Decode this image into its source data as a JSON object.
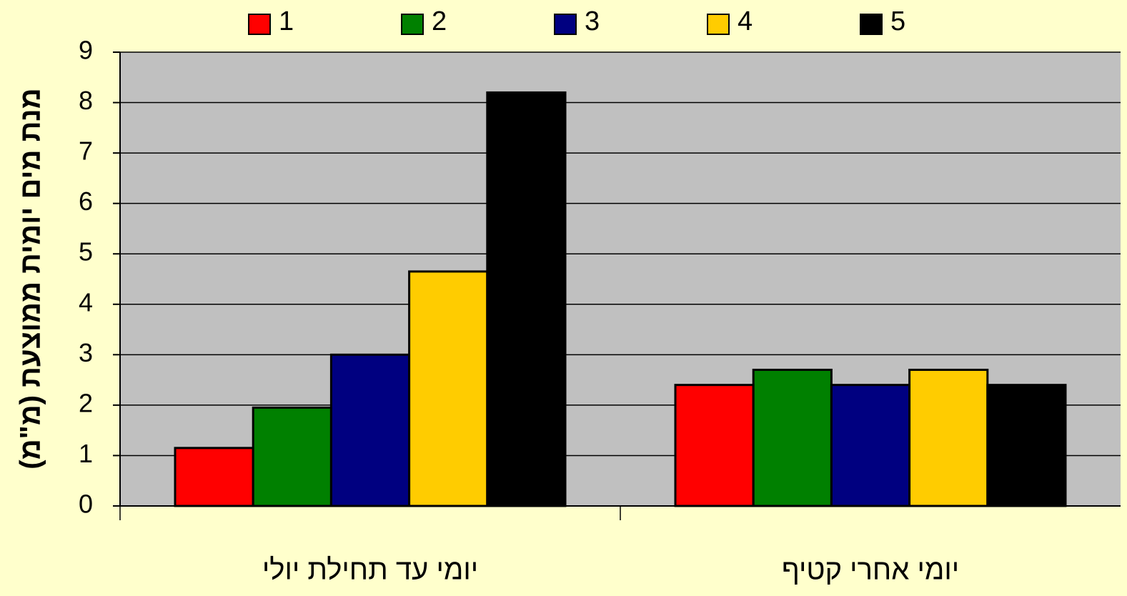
{
  "chart_data": {
    "type": "bar",
    "y_label": "מנת מים יומית ממוצעת (מ\"מ)",
    "categories": [
      "יומי עד תחילת יולי",
      "יומי אחרי קטיף"
    ],
    "series": [
      {
        "name": "1",
        "color": "#ff0000",
        "values": [
          1.15,
          2.4
        ]
      },
      {
        "name": "2",
        "color": "#008000",
        "values": [
          1.95,
          2.7
        ]
      },
      {
        "name": "3",
        "color": "#000080",
        "values": [
          3.0,
          2.4
        ]
      },
      {
        "name": "4",
        "color": "#ffcc00",
        "values": [
          4.65,
          2.7
        ]
      },
      {
        "name": "5",
        "color": "#000000",
        "values": [
          8.2,
          2.4
        ]
      }
    ],
    "ylim": [
      0,
      9
    ],
    "yticks": [
      0,
      1,
      2,
      3,
      4,
      5,
      6,
      7,
      8,
      9
    ],
    "grid": true,
    "legend": "top"
  }
}
